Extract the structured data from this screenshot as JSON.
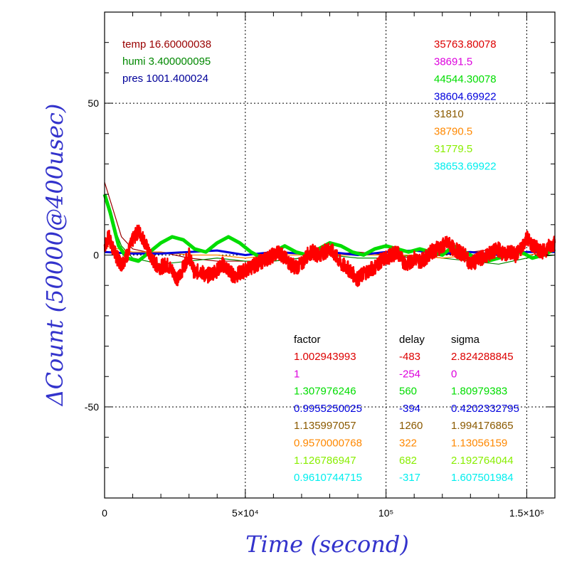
{
  "chart_data": {
    "type": "line",
    "xlabel": "Time (second)",
    "ylabel": "ΔCount (50000@400usec)",
    "xlim": [
      0,
      160000
    ],
    "ylim": [
      -80,
      80
    ],
    "grid": true,
    "x_ticks": [
      {
        "value": 0,
        "label": "0"
      },
      {
        "value": 50000,
        "label": "5×10⁴"
      },
      {
        "value": 100000,
        "label": "10⁵"
      },
      {
        "value": 150000,
        "label": "1.5×10⁵"
      }
    ],
    "y_ticks": [
      {
        "value": 50,
        "label": "50"
      },
      {
        "value": 0,
        "label": "0"
      },
      {
        "value": -50,
        "label": "-50"
      }
    ],
    "env_labels": [
      {
        "text": "temp 16.60000038",
        "color": "#990000"
      },
      {
        "text": "humi 3.400000095",
        "color": "#008800"
      },
      {
        "text": "pres 1001.400024",
        "color": "#000099"
      }
    ],
    "means": [
      {
        "text": "35763.80078",
        "color": "#dd0000"
      },
      {
        "text": "38691.5",
        "color": "#dd00dd"
      },
      {
        "text": "44544.30078",
        "color": "#00dd00"
      },
      {
        "text": "38604.69922",
        "color": "#0000dd"
      },
      {
        "text": "31810",
        "color": "#8b5a00"
      },
      {
        "text": "38790.5",
        "color": "#ff8800"
      },
      {
        "text": "31779.5",
        "color": "#88ee00"
      },
      {
        "text": "38653.69922",
        "color": "#00eeee"
      }
    ],
    "table": {
      "headers": [
        "factor",
        "delay",
        "sigma"
      ],
      "header_color": "#000000",
      "rows": [
        {
          "factor": "1.002943993",
          "delay": "-483",
          "sigma": "2.824288845",
          "color": "#dd0000"
        },
        {
          "factor": "1",
          "delay": "-254",
          "sigma": "0",
          "color": "#dd00dd"
        },
        {
          "factor": "1.307976246",
          "delay": "560",
          "sigma": "1.80979383",
          "color": "#00dd00"
        },
        {
          "factor": "0.9955250025",
          "delay": "-394",
          "sigma": "0.4202332795",
          "color": "#0000dd"
        },
        {
          "factor": "1.135997057",
          "delay": "1260",
          "sigma": "1.994176865",
          "color": "#8b5a00"
        },
        {
          "factor": "0.9570000768",
          "delay": "322",
          "sigma": "1.13056159",
          "color": "#ff8800"
        },
        {
          "factor": "1.126786947",
          "delay": "682",
          "sigma": "2.192764044",
          "color": "#88ee00"
        },
        {
          "factor": "0.9610744715",
          "delay": "-317",
          "sigma": "1.607501984",
          "color": "#00eeee"
        }
      ]
    },
    "series": [
      {
        "color": "#990000",
        "x": [
          0,
          3000,
          6000,
          10000,
          15000,
          20000,
          25000,
          30000,
          40000,
          50000,
          60000,
          70000,
          80000,
          90000,
          100000,
          110000,
          120000,
          130000,
          140000,
          150000,
          160000
        ],
        "y": [
          24,
          15,
          6,
          2,
          1,
          1,
          0,
          -1,
          -2,
          -2,
          -2,
          -1,
          0,
          1,
          0,
          -1,
          0,
          1,
          2,
          1,
          1
        ]
      },
      {
        "color": "#008800",
        "x": [
          0,
          3000,
          6000,
          10000,
          20000,
          30000,
          40000,
          50000,
          60000,
          70000,
          80000,
          90000,
          100000,
          110000,
          120000,
          130000,
          140000,
          150000,
          160000
        ],
        "y": [
          20,
          10,
          3,
          -1,
          -3,
          -2,
          -1,
          -2,
          -2,
          -1,
          0,
          -1,
          -1,
          0,
          -1,
          -2,
          -3,
          -1,
          0
        ]
      },
      {
        "color": "#ff8800",
        "x": [
          0,
          5000,
          10000,
          20000,
          30000,
          40000,
          50000,
          60000,
          70000,
          80000,
          90000,
          100000,
          110000,
          120000,
          130000,
          140000,
          150000,
          160000
        ],
        "y": [
          3,
          2,
          1,
          1,
          0,
          0,
          -1,
          0,
          0,
          0,
          0,
          0,
          0,
          -1,
          0,
          0,
          0,
          1
        ]
      },
      {
        "color": "#0000dd",
        "x": [
          0,
          10000,
          20000,
          30000,
          40000,
          50000,
          60000,
          70000,
          80000,
          90000,
          100000,
          110000,
          120000,
          130000,
          140000,
          150000,
          160000
        ],
        "y": [
          1,
          0.5,
          0.5,
          1,
          1.5,
          0,
          1,
          0.5,
          1,
          0,
          1,
          1.5,
          0.5,
          1,
          0,
          1,
          1
        ]
      },
      {
        "color": "#00dd00",
        "x": [
          0,
          2000,
          5000,
          8000,
          12000,
          16000,
          20000,
          24000,
          28000,
          32000,
          36000,
          40000,
          44000,
          48000,
          52000,
          56000,
          60000,
          64000,
          68000,
          72000,
          76000,
          80000,
          84000,
          88000,
          92000,
          96000,
          100000,
          104000,
          108000,
          112000,
          116000,
          120000,
          124000,
          128000,
          132000,
          136000,
          140000,
          144000,
          148000,
          152000,
          156000,
          160000
        ],
        "y": [
          20,
          14,
          3,
          -1,
          -2,
          1,
          4,
          6,
          5,
          2,
          1,
          4,
          6,
          4,
          1,
          -1,
          1,
          3,
          1,
          0,
          2,
          4,
          3,
          1,
          0,
          2,
          3,
          2,
          1,
          2,
          1,
          0,
          3,
          1,
          -1,
          -2,
          -1,
          0,
          1,
          -1,
          0,
          2
        ]
      },
      {
        "color": "#ff0000",
        "width": 2.6,
        "x": [
          0,
          1500,
          3000,
          4500,
          6000,
          8000,
          10000,
          12000,
          14000,
          16000,
          18000,
          20000,
          22000,
          24000,
          26000,
          28000,
          30000,
          32000,
          34000,
          36000,
          38000,
          40000,
          42000,
          44000,
          46000,
          48000,
          50000,
          52000,
          54000,
          56000,
          58000,
          60000,
          62000,
          64000,
          66000,
          68000,
          70000,
          72000,
          74000,
          76000,
          78000,
          80000,
          82000,
          84000,
          86000,
          88000,
          90000,
          92000,
          94000,
          96000,
          98000,
          100000,
          102000,
          104000,
          106000,
          108000,
          110000,
          112000,
          114000,
          116000,
          118000,
          120000,
          122000,
          124000,
          126000,
          128000,
          130000,
          132000,
          134000,
          136000,
          138000,
          140000,
          142000,
          144000,
          146000,
          148000,
          150000,
          152000,
          154000,
          156000,
          158000,
          160000
        ],
        "y": [
          3,
          6,
          2,
          -1,
          -3,
          0,
          5,
          8,
          5,
          0,
          -3,
          -4,
          -3,
          -5,
          -8,
          -4,
          0,
          -6,
          -5,
          -7,
          -6,
          -5,
          -3,
          -5,
          -7,
          -6,
          -5,
          -4,
          -3,
          -2,
          -1,
          0,
          1,
          -1,
          -3,
          -4,
          -3,
          0,
          1,
          0,
          1,
          2,
          0,
          -3,
          -4,
          -6,
          -8,
          -6,
          -5,
          -4,
          -2,
          -1,
          0,
          1,
          -2,
          -3,
          -1,
          -2,
          -1,
          1,
          2,
          3,
          4,
          2,
          1,
          0,
          -3,
          -2,
          -1,
          0,
          1,
          2,
          0,
          1,
          0,
          2,
          6,
          3,
          2,
          1,
          3,
          4
        ],
        "noise": 2.5
      }
    ]
  }
}
